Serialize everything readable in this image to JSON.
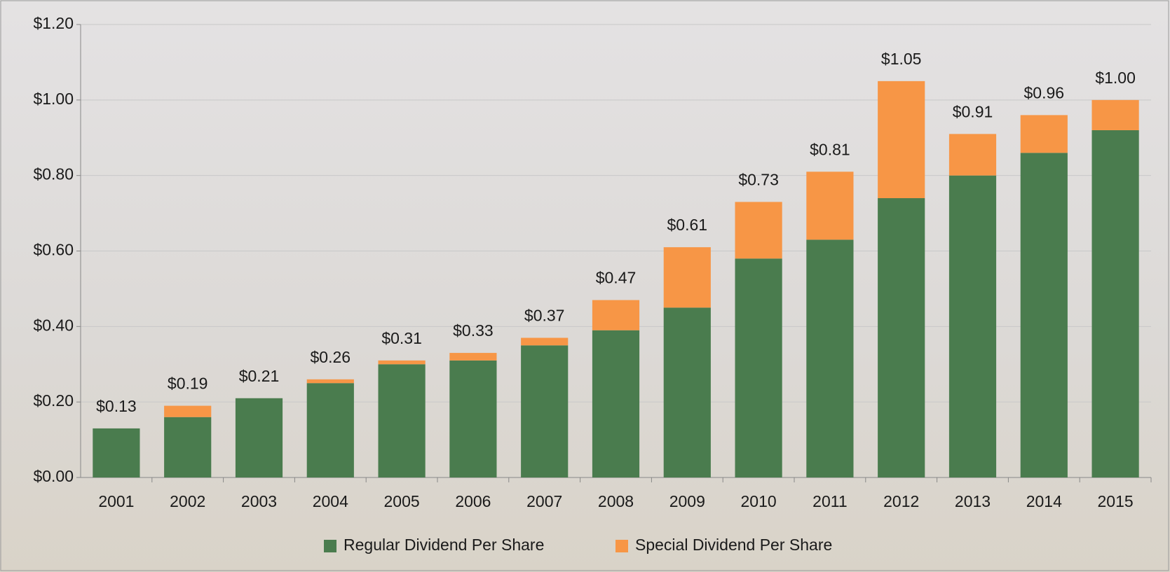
{
  "chart_data": {
    "type": "stacked_bar",
    "categories": [
      "2001",
      "2002",
      "2003",
      "2004",
      "2005",
      "2006",
      "2007",
      "2008",
      "2009",
      "2010",
      "2011",
      "2012",
      "2013",
      "2014",
      "2015"
    ],
    "series": [
      {
        "name": "Regular Dividend Per Share",
        "color": "#4a7c4e",
        "values": [
          0.13,
          0.16,
          0.21,
          0.25,
          0.3,
          0.31,
          0.35,
          0.39,
          0.45,
          0.58,
          0.63,
          0.74,
          0.8,
          0.86,
          0.92
        ]
      },
      {
        "name": "Special Dividend Per Share",
        "color": "#f79646",
        "values": [
          0,
          0.03,
          0,
          0.01,
          0.01,
          0.02,
          0.02,
          0.08,
          0.16,
          0.15,
          0.18,
          0.31,
          0.11,
          0.1,
          0.08
        ]
      }
    ],
    "totals": [
      0.13,
      0.19,
      0.21,
      0.26,
      0.31,
      0.33,
      0.37,
      0.47,
      0.61,
      0.73,
      0.81,
      1.05,
      0.91,
      0.96,
      1.0
    ],
    "total_labels": [
      "$0.13",
      "$0.19",
      "$0.21",
      "$0.26",
      "$0.31",
      "$0.33",
      "$0.37",
      "$0.47",
      "$0.61",
      "$0.73",
      "$0.81",
      "$1.05",
      "$0.91",
      "$0.96",
      "$1.00"
    ],
    "ylim": [
      0,
      1.2
    ],
    "yticks": [
      {
        "value": 0,
        "label": "$0.00"
      },
      {
        "value": 0.2,
        "label": "$0.20"
      },
      {
        "value": 0.4,
        "label": "$0.40"
      },
      {
        "value": 0.6,
        "label": "$0.60"
      },
      {
        "value": 0.8,
        "label": "$0.80"
      },
      {
        "value": 1.0,
        "label": "$1.00"
      },
      {
        "value": 1.2,
        "label": "$1.20"
      }
    ],
    "grid": true,
    "legend": "bottom"
  }
}
